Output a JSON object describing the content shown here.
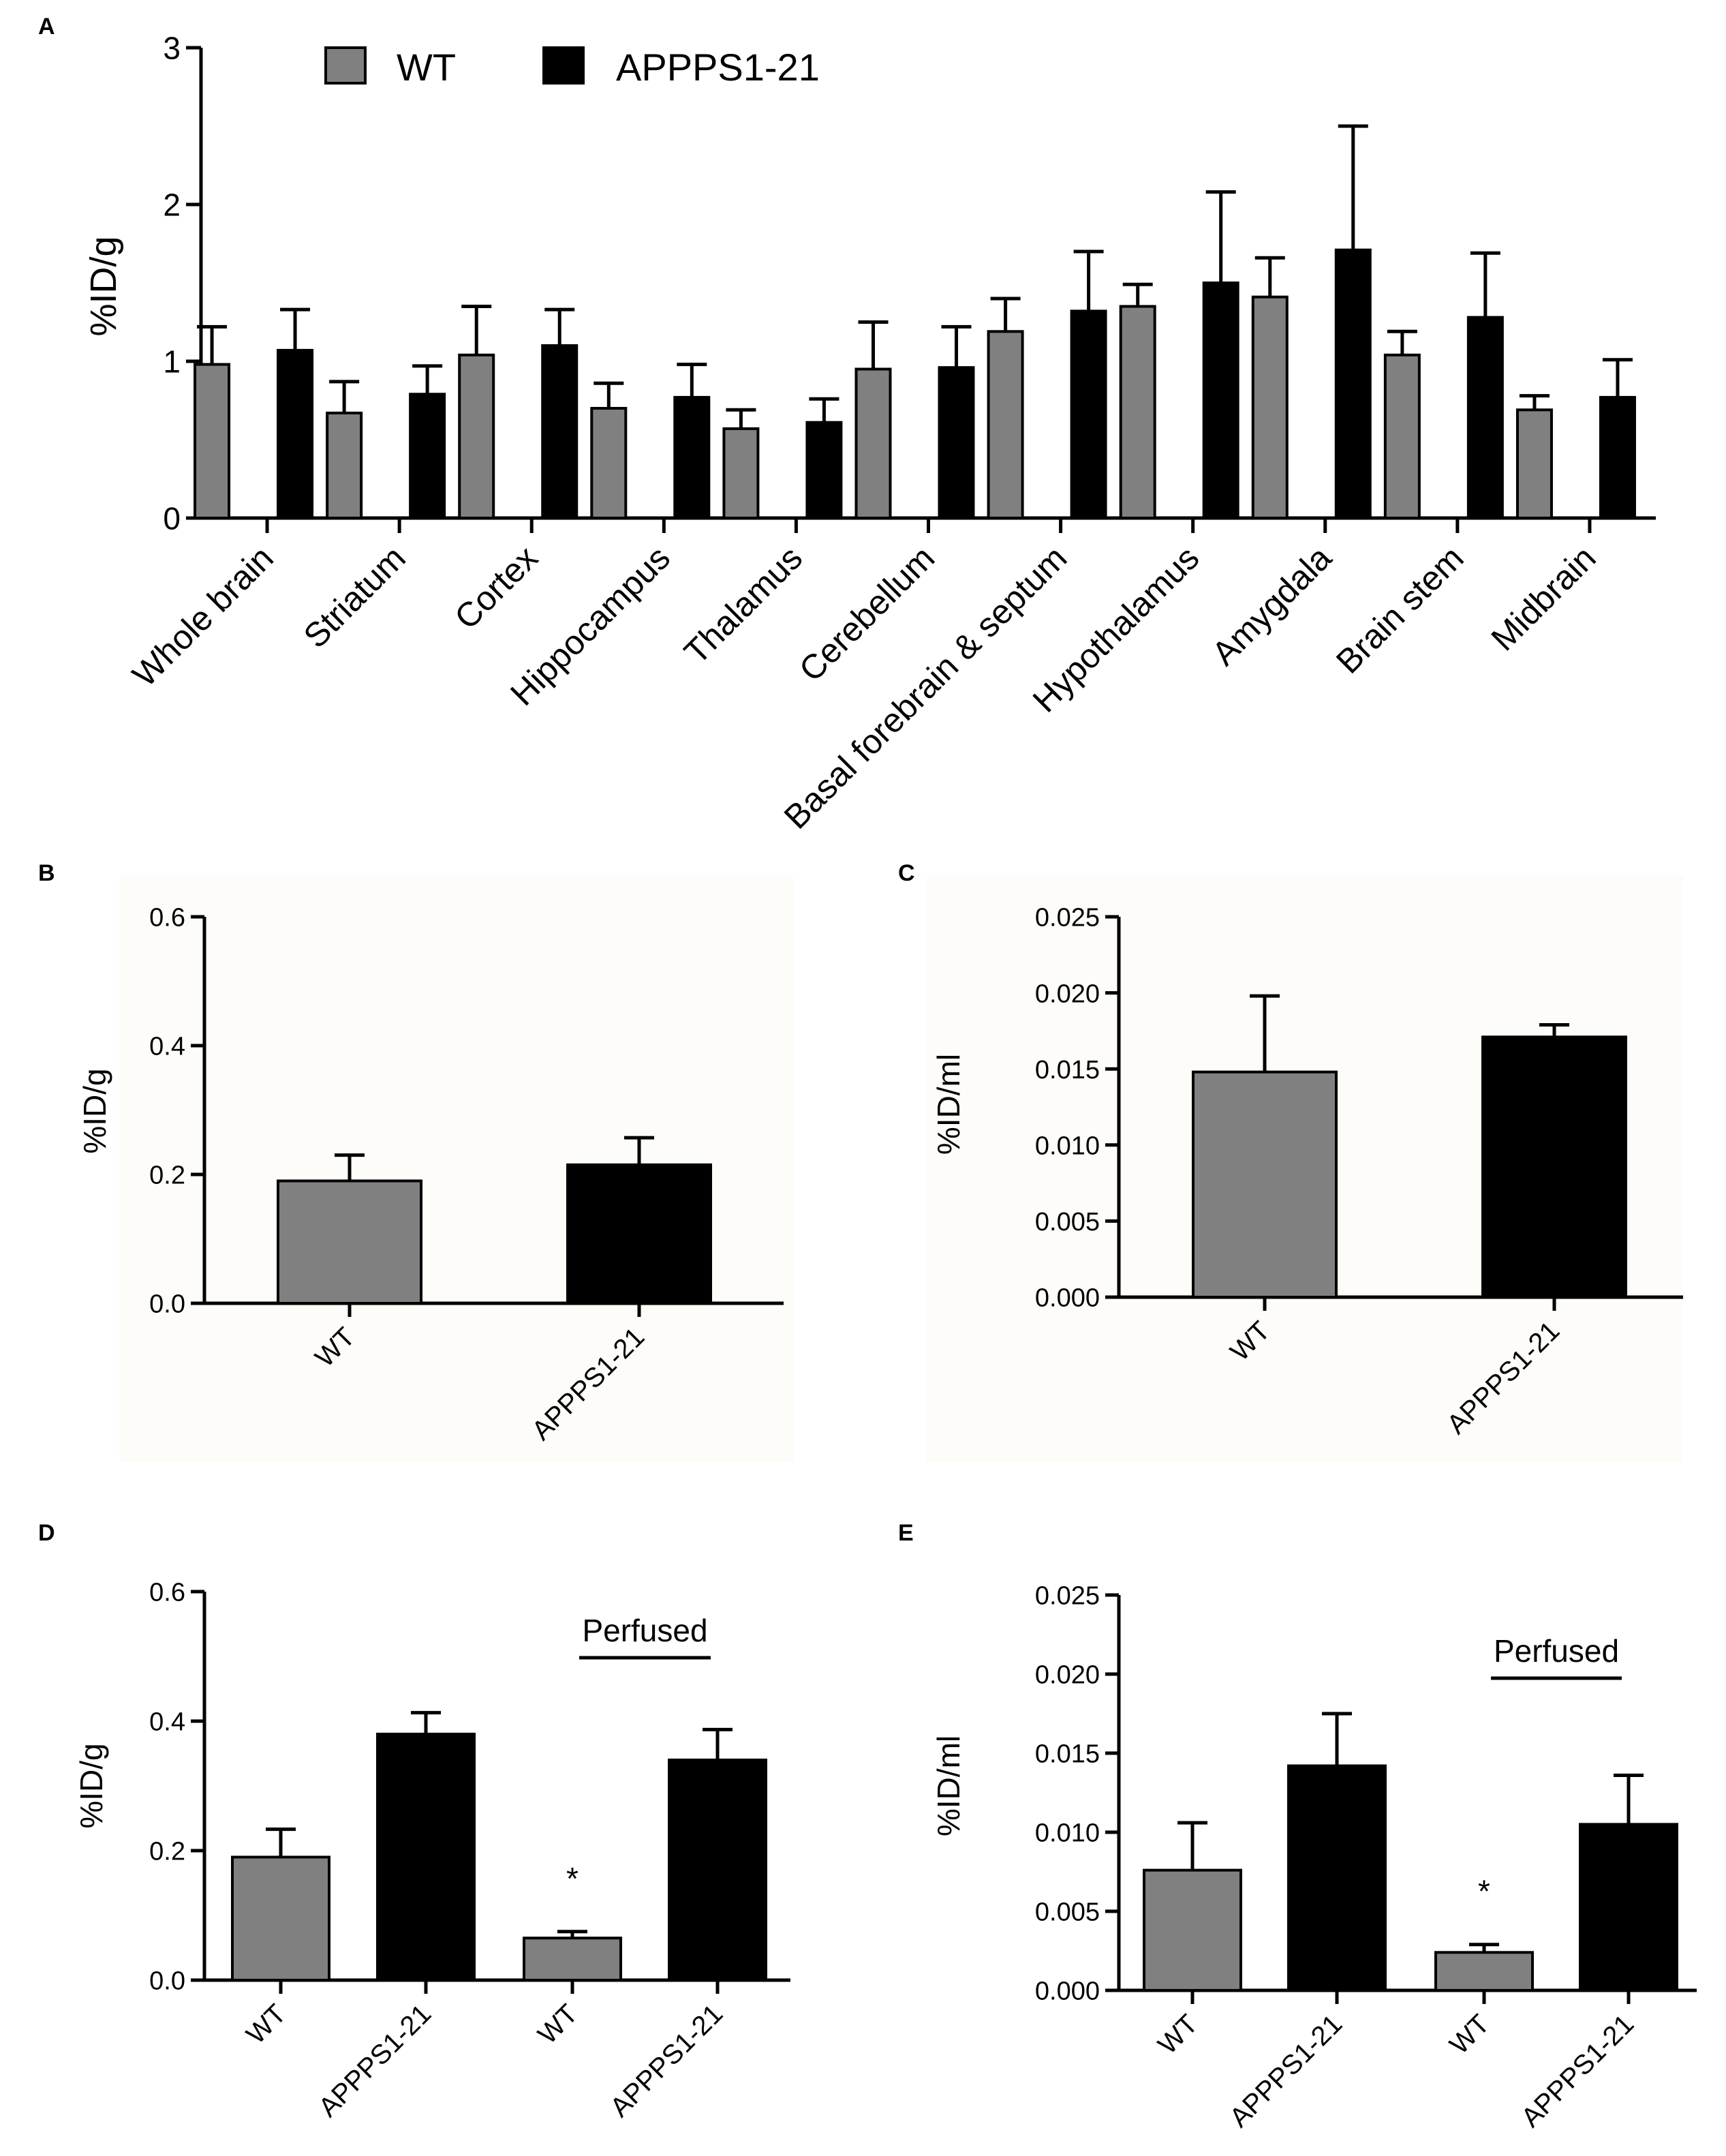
{
  "colors": {
    "wt": "#808080",
    "tg": "#000000",
    "axis": "#000000",
    "panel_bg": "#fdfcf8"
  },
  "chart_data": [
    {
      "id": "A",
      "panel_label": "A",
      "type": "bar",
      "ylabel": "%ID/g",
      "ylim": [
        0,
        3
      ],
      "yticks": [
        "0",
        "1",
        "2",
        "3"
      ],
      "legend": [
        "WT",
        "APPPS1-21"
      ],
      "categories": [
        "Whole brain",
        "Striatum",
        "Cortex",
        "Hippocampus",
        "Thalamus",
        "Cerebellum",
        "Basal forebrain & septum",
        "Hypothalamus",
        "Amygdala",
        "Brain stem",
        "Midbrain"
      ],
      "series": [
        {
          "name": "WT",
          "values": [
            0.98,
            0.67,
            1.04,
            0.7,
            0.57,
            0.95,
            1.19,
            1.35,
            1.41,
            1.04,
            0.69
          ],
          "err": [
            0.24,
            0.2,
            0.31,
            0.16,
            0.12,
            0.3,
            0.21,
            0.14,
            0.25,
            0.15,
            0.09
          ]
        },
        {
          "name": "APPPS1-21",
          "values": [
            1.07,
            0.79,
            1.1,
            0.77,
            0.61,
            0.96,
            1.32,
            1.5,
            1.71,
            1.28,
            0.77
          ],
          "err": [
            0.26,
            0.18,
            0.23,
            0.21,
            0.15,
            0.26,
            0.38,
            0.58,
            0.79,
            0.41,
            0.24
          ]
        }
      ]
    },
    {
      "id": "B",
      "panel_label": "B",
      "type": "bar",
      "ylabel": "%ID/g",
      "ylim": [
        0,
        0.6
      ],
      "yticks": [
        "0.0",
        "0.2",
        "0.4",
        "0.6"
      ],
      "categories": [
        "WT",
        "APPPS1-21"
      ],
      "values": [
        0.19,
        0.215
      ],
      "err": [
        0.04,
        0.042
      ]
    },
    {
      "id": "C",
      "panel_label": "C",
      "type": "bar",
      "ylabel": "%ID/ml",
      "ylim": [
        0,
        0.025
      ],
      "yticks": [
        "0.000",
        "0.005",
        "0.010",
        "0.015",
        "0.020",
        "0.025"
      ],
      "categories": [
        "WT",
        "APPPS1-21"
      ],
      "values": [
        0.0148,
        0.0171
      ],
      "err": [
        0.005,
        0.0008
      ]
    },
    {
      "id": "D",
      "panel_label": "D",
      "type": "bar",
      "ylabel": "%ID/g",
      "ylim": [
        0,
        0.6
      ],
      "yticks": [
        "0.0",
        "0.2",
        "0.4",
        "0.6"
      ],
      "categories": [
        "WT",
        "APPPS1-21",
        "WT",
        "APPPS1-21"
      ],
      "values": [
        0.19,
        0.38,
        0.065,
        0.34
      ],
      "err": [
        0.043,
        0.033,
        0.01,
        0.047
      ],
      "group_label": "Perfused",
      "significance": "*"
    },
    {
      "id": "E",
      "panel_label": "E",
      "type": "bar",
      "ylabel": "%ID/ml",
      "ylim": [
        0,
        0.025
      ],
      "yticks": [
        "0.000",
        "0.005",
        "0.010",
        "0.015",
        "0.020",
        "0.025"
      ],
      "categories": [
        "WT",
        "APPPS1-21",
        "WT",
        "APPPS1-21"
      ],
      "values": [
        0.0076,
        0.0142,
        0.0024,
        0.0105
      ],
      "err": [
        0.003,
        0.0033,
        0.0005,
        0.0031
      ],
      "group_label": "Perfused",
      "significance": "*"
    }
  ]
}
